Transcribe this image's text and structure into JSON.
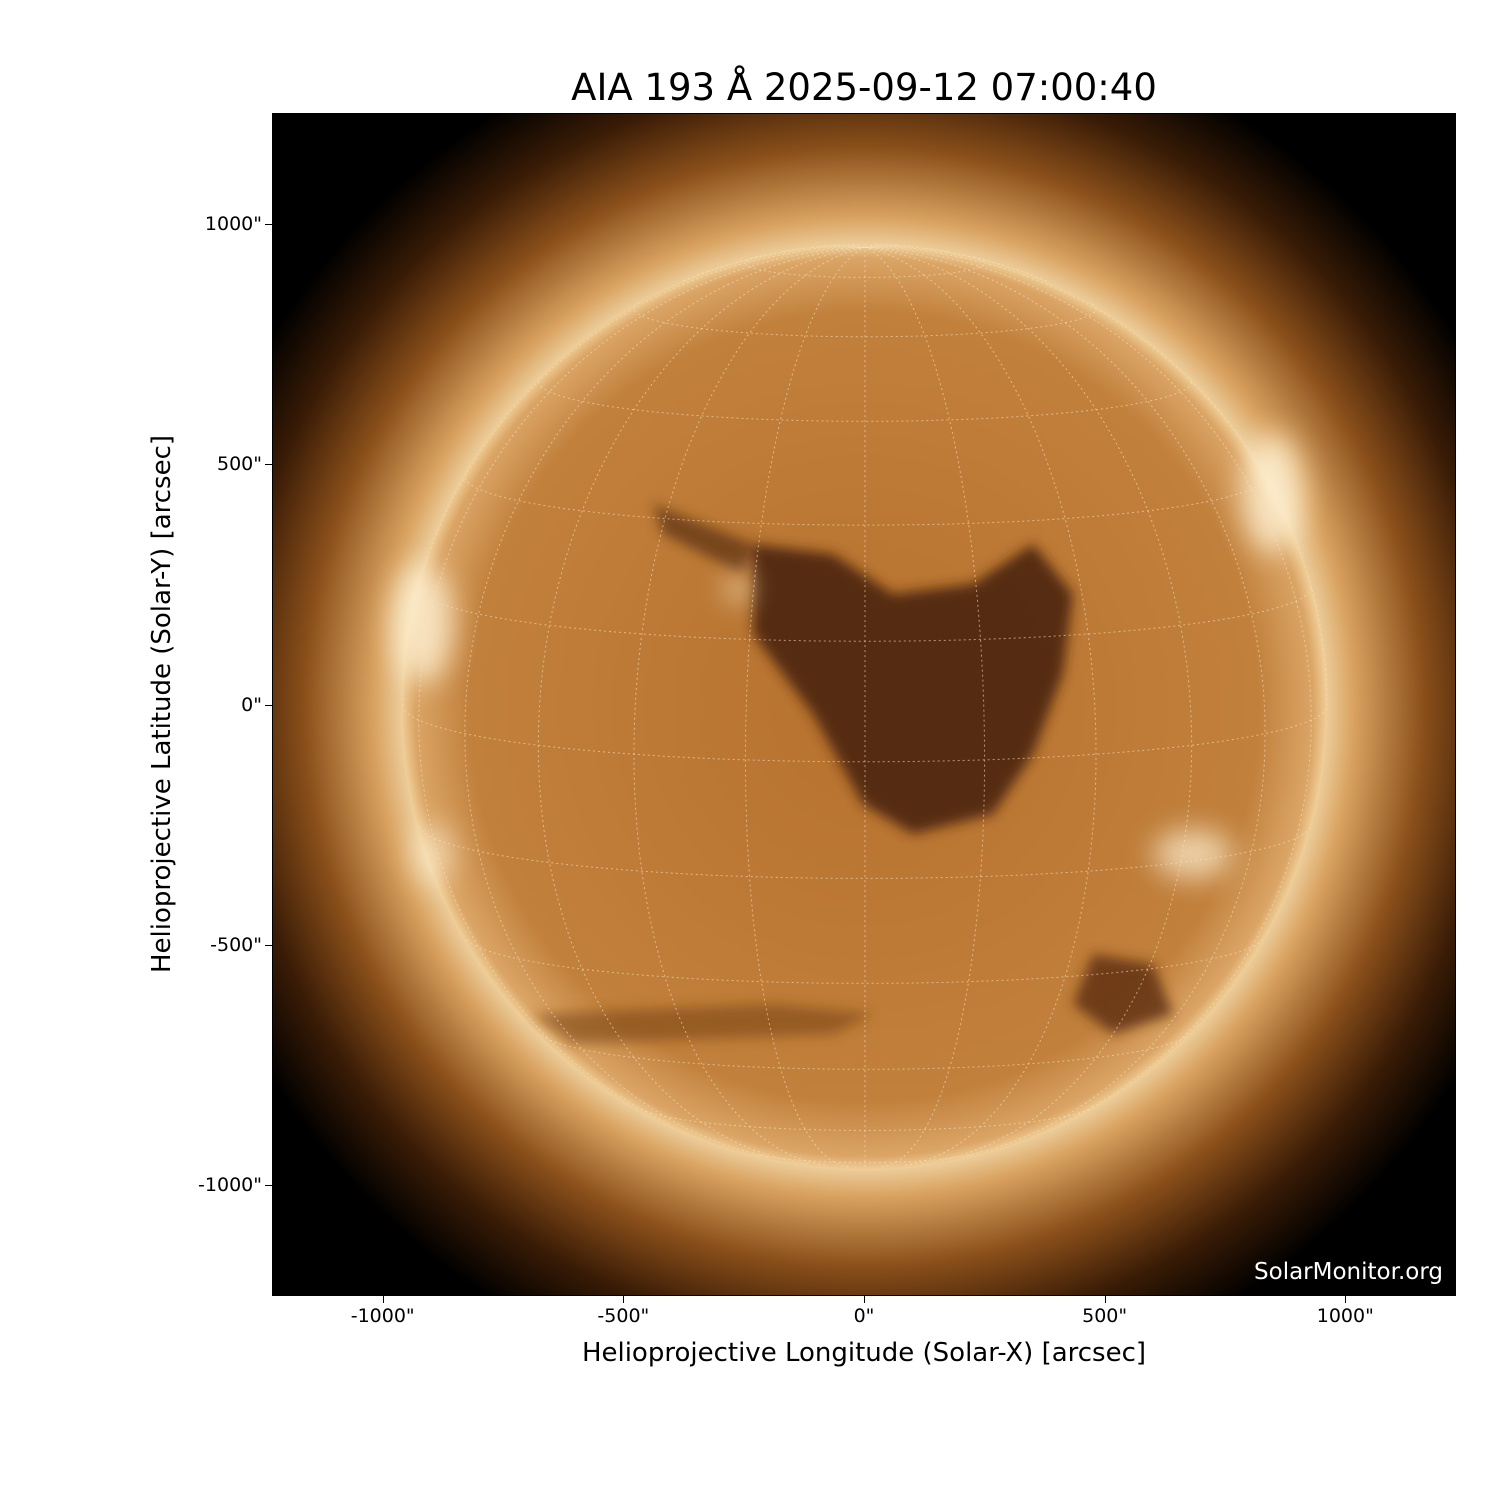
{
  "title": "AIA 193 Å 2025-09-12 07:00:40",
  "watermark": "SolarMonitor.org",
  "colors": {
    "disk": "#b8732e",
    "corona": "#f3d6a0",
    "coronal_hole": "#3a1a05",
    "background": "#000000"
  },
  "chart_data": {
    "type": "image",
    "title": "AIA 193 Å 2025-09-12 07:00:40",
    "xlabel": "Helioprojective Longitude (Solar-X) [arcsec]",
    "ylabel": "Helioprojective Latitude (Solar-Y) [arcsec]",
    "xlim": [
      -1230,
      1230
    ],
    "ylim": [
      -1230,
      1230
    ],
    "xticks": [
      -1000,
      -500,
      0,
      500,
      1000
    ],
    "yticks": [
      1000,
      500,
      0,
      -500,
      -1000
    ],
    "xtick_labels": [
      "-1000\"",
      "-500\"",
      "0\"",
      "500\"",
      "1000\""
    ],
    "ytick_labels": [
      "1000\"",
      "500\"",
      "0\"",
      "-500\"",
      "-1000\""
    ],
    "solar_radius_arcsec": 960,
    "grid": "heliographic lat/lon every 15°"
  }
}
